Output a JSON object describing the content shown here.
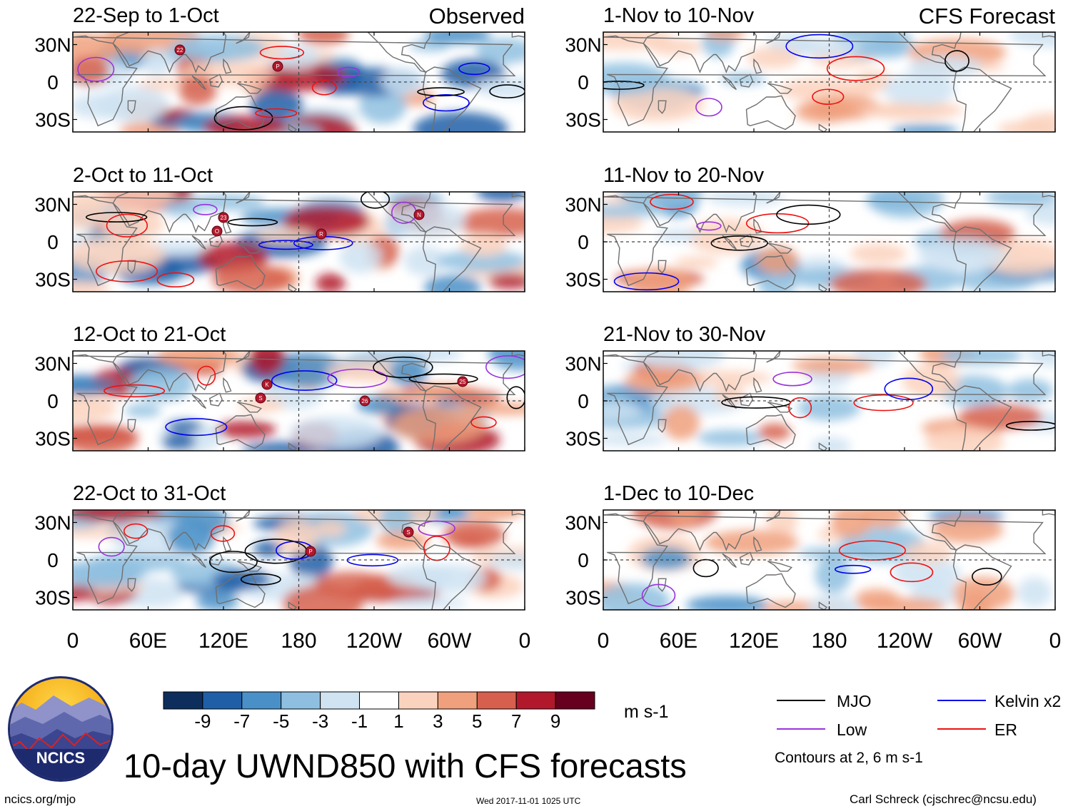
{
  "chart_data": {
    "type": "heatmap",
    "title": "10-day UWND850 with CFS forecasts",
    "columns": [
      {
        "header": "Observed",
        "panels": [
          {
            "period": "22-Sep to 1-Oct",
            "storm_markers": [
              "22",
              "P"
            ]
          },
          {
            "period": "2-Oct to 11-Oct",
            "storm_markers": [
              "23",
              "R",
              "N",
              "O"
            ]
          },
          {
            "period": "12-Oct to 21-Oct",
            "storm_markers": [
              "K",
              "26",
              "25",
              "S"
            ]
          },
          {
            "period": "22-Oct to 31-Oct",
            "storm_markers": [
              "P",
              "S"
            ]
          }
        ]
      },
      {
        "header": "CFS Forecast",
        "panels": [
          {
            "period": "1-Nov to 10-Nov",
            "storm_markers": []
          },
          {
            "period": "11-Nov to 20-Nov",
            "storm_markers": []
          },
          {
            "period": "21-Nov to 30-Nov",
            "storm_markers": []
          },
          {
            "period": "1-Dec to 10-Dec",
            "storm_markers": []
          }
        ]
      }
    ],
    "y_ticks": [
      "30N",
      "0",
      "30S"
    ],
    "x_ticks": [
      "0",
      "60E",
      "120E",
      "180",
      "120W",
      "60W",
      "0"
    ],
    "lat_range": [
      -40,
      40
    ],
    "lon_range": [
      0,
      360
    ],
    "colorbar": {
      "labels": [
        "-9",
        "-7",
        "-5",
        "-3",
        "-1",
        "1",
        "3",
        "5",
        "7",
        "9"
      ],
      "colors": [
        "#0d2e5c",
        "#1f5fa8",
        "#4a90c8",
        "#8fbfe0",
        "#cfe3f2",
        "#ffffff",
        "#fbd2bd",
        "#f0a07d",
        "#d6604d",
        "#b2182b",
        "#67001f"
      ],
      "units": "m s-1"
    },
    "legend": {
      "items": [
        {
          "label": "MJO",
          "color": "#000000"
        },
        {
          "label": "Kelvin x2",
          "color": "#0000ee"
        },
        {
          "label": "Low",
          "color": "#9933dd"
        },
        {
          "label": "ER",
          "color": "#ee1111"
        }
      ],
      "note": "Contours at 2, 6 m s-1"
    }
  },
  "logo": {
    "text": "NCICS"
  },
  "footer": {
    "left": "ncics.org/mjo",
    "center": "Wed 2017-11-01 1025 UTC",
    "right": "Carl Schreck (cjschrec@ncsu.edu)"
  }
}
